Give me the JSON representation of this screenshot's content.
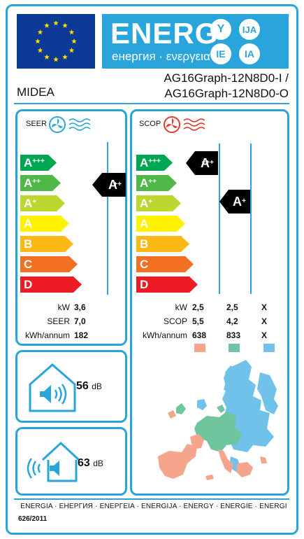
{
  "header": {
    "energ_title": "ENERG",
    "energ_subtitle": "енергия · ενεργεια",
    "lang_codes": [
      "Y",
      "IJA",
      "IE",
      "IA"
    ]
  },
  "supplier": {
    "brand": "MIDEA",
    "model_line1": "AG16Graph-12N8D0-I /",
    "model_line2": "AG16Graph-12N8D0-O"
  },
  "seer": {
    "title": "SEER",
    "scale": [
      {
        "base": "A",
        "plus": "+++",
        "color": "#00a651"
      },
      {
        "base": "A",
        "plus": "++",
        "color": "#50b848"
      },
      {
        "base": "A",
        "plus": "+",
        "color": "#bed630"
      },
      {
        "base": "A",
        "plus": "",
        "color": "#fff200"
      },
      {
        "base": "B",
        "plus": "",
        "color": "#fcb814"
      },
      {
        "base": "C",
        "plus": "",
        "color": "#f36f21"
      },
      {
        "base": "D",
        "plus": "",
        "color": "#ed1c24"
      }
    ],
    "rating_base": "A",
    "rating_plus": "++",
    "labels": [
      "kW",
      "SEER",
      "kWh/annum"
    ],
    "values": [
      "3,6",
      "7,0",
      "182"
    ]
  },
  "scop": {
    "title": "SCOP",
    "scale": [
      {
        "base": "A",
        "plus": "+++",
        "color": "#00a651"
      },
      {
        "base": "A",
        "plus": "++",
        "color": "#50b848"
      },
      {
        "base": "A",
        "plus": "+",
        "color": "#bed630"
      },
      {
        "base": "A",
        "plus": "",
        "color": "#fff200"
      },
      {
        "base": "B",
        "plus": "",
        "color": "#fcb814"
      },
      {
        "base": "C",
        "plus": "",
        "color": "#f36f21"
      },
      {
        "base": "D",
        "plus": "",
        "color": "#ed1c24"
      }
    ],
    "rating1_base": "A",
    "rating1_plus": "+++",
    "rating2_base": "A",
    "rating2_plus": "+",
    "labels": [
      "kW",
      "SCOP",
      "kWh/annum"
    ],
    "col_warmer": [
      "2,5",
      "5,5",
      "638"
    ],
    "col_average": [
      "2,5",
      "4,2",
      "833"
    ],
    "col_colder": [
      "X",
      "X",
      "X"
    ],
    "zone_colors": [
      "#f4a58c",
      "#6fc59d",
      "#70c2ea"
    ]
  },
  "noise": {
    "indoor_value": "56",
    "outdoor_value": "63",
    "unit": "dB"
  },
  "footer": {
    "languages": "ENERGIA · ЕНЕРГИЯ · ΕΝΕΡΓΕΙΑ · ENERGIJA · ENERGY · ENERGIE · ENERGI",
    "regulation": "626/2011"
  }
}
